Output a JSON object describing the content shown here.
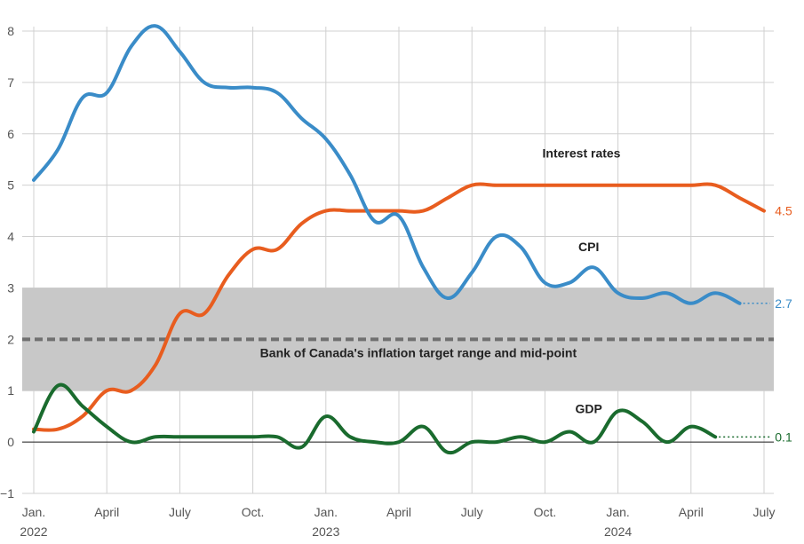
{
  "chart_data": {
    "type": "line",
    "title": "",
    "xlabel": "",
    "ylabel": "",
    "ylim": [
      -1,
      8
    ],
    "yticks": [
      "−1",
      "0",
      "1",
      "2",
      "3",
      "4",
      "5",
      "6",
      "7",
      "8"
    ],
    "xlim_months": [
      0,
      30
    ],
    "xticks": [
      {
        "m": 0,
        "label": "Jan.",
        "year": "2022"
      },
      {
        "m": 3,
        "label": "April",
        "year": ""
      },
      {
        "m": 6,
        "label": "July",
        "year": ""
      },
      {
        "m": 9,
        "label": "Oct.",
        "year": ""
      },
      {
        "m": 12,
        "label": "Jan.",
        "year": "2023"
      },
      {
        "m": 15,
        "label": "April",
        "year": ""
      },
      {
        "m": 18,
        "label": "July",
        "year": ""
      },
      {
        "m": 21,
        "label": "Oct.",
        "year": ""
      },
      {
        "m": 24,
        "label": "Jan.",
        "year": "2024"
      },
      {
        "m": 27,
        "label": "April",
        "year": ""
      },
      {
        "m": 30,
        "label": "July",
        "year": ""
      }
    ],
    "target_band": {
      "low": 1,
      "high": 3,
      "mid": 2,
      "label": "Bank of Canada's inflation target range and mid-point",
      "color": "#c8c8c8"
    },
    "series": [
      {
        "name": "Interest rates",
        "color": "#e85d1f",
        "end_value": "4.5",
        "x": [
          0,
          1,
          2,
          3,
          4,
          5,
          6,
          7,
          8,
          9,
          10,
          11,
          12,
          13,
          14,
          15,
          16,
          17,
          18,
          19,
          20,
          21,
          22,
          23,
          24,
          25,
          26,
          27,
          28,
          29,
          30
        ],
        "values": [
          0.25,
          0.25,
          0.5,
          1.0,
          1.0,
          1.5,
          2.5,
          2.5,
          3.25,
          3.75,
          3.75,
          4.25,
          4.5,
          4.5,
          4.5,
          4.5,
          4.5,
          4.75,
          5.0,
          5.0,
          5.0,
          5.0,
          5.0,
          5.0,
          5.0,
          5.0,
          5.0,
          5.0,
          5.0,
          4.75,
          4.5
        ]
      },
      {
        "name": "CPI",
        "color": "#3a8cc8",
        "end_value": "2.7",
        "x": [
          0,
          1,
          2,
          3,
          4,
          5,
          6,
          7,
          8,
          9,
          10,
          11,
          12,
          13,
          14,
          15,
          16,
          17,
          18,
          19,
          20,
          21,
          22,
          23,
          24,
          25,
          26,
          27,
          28,
          29
        ],
        "values": [
          5.1,
          5.7,
          6.7,
          6.8,
          7.7,
          8.1,
          7.6,
          7.0,
          6.9,
          6.9,
          6.8,
          6.3,
          5.9,
          5.2,
          4.3,
          4.4,
          3.4,
          2.8,
          3.3,
          4.0,
          3.8,
          3.1,
          3.1,
          3.4,
          2.9,
          2.8,
          2.9,
          2.7,
          2.9,
          2.7
        ]
      },
      {
        "name": "GDP",
        "color": "#1a6b2e",
        "end_value": "0.1",
        "x": [
          0,
          1,
          2,
          3,
          4,
          5,
          6,
          7,
          8,
          9,
          10,
          11,
          12,
          13,
          14,
          15,
          16,
          17,
          18,
          19,
          20,
          21,
          22,
          23,
          24,
          25,
          26,
          27,
          28
        ],
        "values": [
          0.2,
          1.1,
          0.7,
          0.3,
          0.0,
          0.1,
          0.1,
          0.1,
          0.1,
          0.1,
          0.1,
          -0.1,
          0.5,
          0.1,
          0.0,
          0.0,
          0.3,
          -0.2,
          0.0,
          0.0,
          0.1,
          0.0,
          0.2,
          0.0,
          0.6,
          0.4,
          0.0,
          0.3,
          0.1
        ]
      }
    ]
  }
}
